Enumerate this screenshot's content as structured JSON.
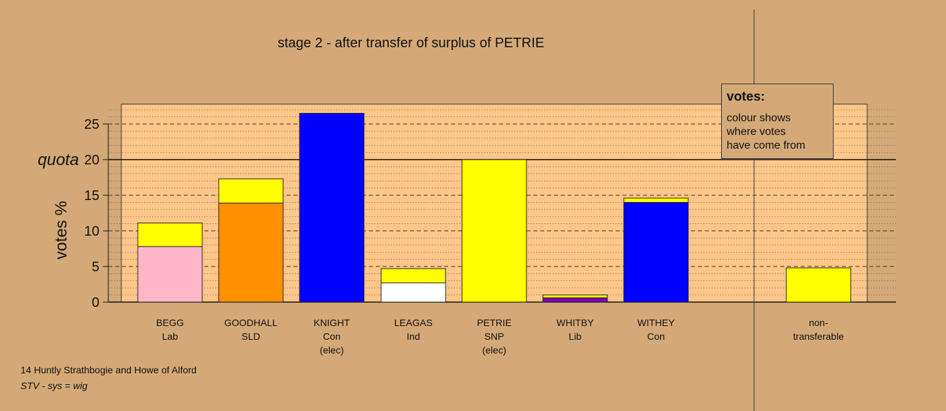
{
  "chart_data": {
    "type": "bar",
    "stacked": true,
    "title": "stage 2 - after transfer of surplus of PETRIE",
    "ylabel": "votes %",
    "ylim": [
      0,
      27.8
    ],
    "yticks": [
      0,
      5,
      10,
      15,
      20,
      25
    ],
    "quota": 20,
    "quota_label": "quota",
    "grid": "dashed at 5-unit intervals, dotted minor lines",
    "candidates": [
      {
        "name": "BEGG",
        "party": "Lab",
        "note": "",
        "segments": [
          {
            "value": 7.8,
            "color": "#ffb6c8"
          },
          {
            "value": 3.3,
            "color": "#ffff00"
          }
        ]
      },
      {
        "name": "GOODHALL",
        "party": "SLD",
        "note": "",
        "segments": [
          {
            "value": 13.9,
            "color": "#ff9000"
          },
          {
            "value": 3.4,
            "color": "#ffff00"
          }
        ]
      },
      {
        "name": "KNIGHT",
        "party": "Con",
        "note": "(elec)",
        "segments": [
          {
            "value": 26.5,
            "color": "#0000ff"
          }
        ]
      },
      {
        "name": "LEAGAS",
        "party": "Ind",
        "note": "",
        "segments": [
          {
            "value": 2.7,
            "color": "#ffffff"
          },
          {
            "value": 2.0,
            "color": "#ffff00"
          }
        ]
      },
      {
        "name": "PETRIE",
        "party": "SNP",
        "note": "(elec)",
        "segments": [
          {
            "value": 20.0,
            "color": "#ffff00"
          }
        ]
      },
      {
        "name": "WHITBY",
        "party": "Lib",
        "note": "",
        "segments": [
          {
            "value": 0.6,
            "color": "#8000c0"
          },
          {
            "value": 0.4,
            "color": "#ffff00"
          }
        ]
      },
      {
        "name": "WITHEY",
        "party": "Con",
        "note": "",
        "segments": [
          {
            "value": 14.0,
            "color": "#0000ff"
          },
          {
            "value": 0.6,
            "color": "#ffff00"
          }
        ]
      },
      {
        "name": "non-",
        "party": "transferable",
        "note": "",
        "segments": [
          {
            "value": 4.8,
            "color": "#ffff00"
          }
        ]
      }
    ],
    "legend": {
      "title": "votes:",
      "lines": [
        "colour shows",
        "where votes",
        "have come from"
      ]
    },
    "colors": {
      "background": "#d4a977",
      "plot_area": "#ffc68a"
    }
  },
  "footer": {
    "line1": "14 Huntly Strathbogie and Howe of Alford",
    "line2": "STV - sys = wig"
  }
}
